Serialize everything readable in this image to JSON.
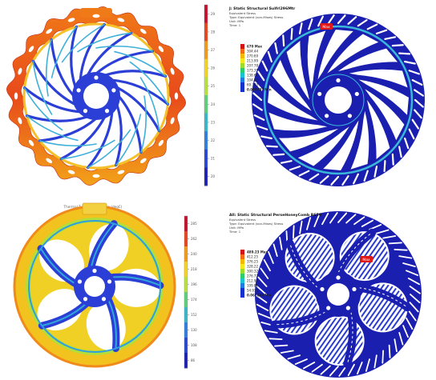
{
  "panels": [
    {
      "id": "thermal-top",
      "colorbar": {
        "ticks": [
          "29",
          "28",
          "27",
          "26",
          "25",
          "24",
          "23",
          "22",
          "21",
          "20"
        ],
        "colors": [
          "#c8102e",
          "#e8451c",
          "#f39a19",
          "#f5d520",
          "#b9e23a",
          "#5fd07a",
          "#36b8c9",
          "#2f7fe0",
          "#2546d6",
          "#1a1fb8"
        ]
      },
      "disc": {
        "vanes": 16,
        "hole_count": 5,
        "outline_color": "#f0b22a",
        "vane_color": "#2b3fd6"
      }
    },
    {
      "id": "stress-top",
      "header": {
        "title": "J: Static Structural Sulfrl296Mtr",
        "lines": [
          "Equivalent Stress",
          "Type: Equivalent (von-Mises) Stress",
          "Unit: MPa",
          "Time: 1"
        ]
      },
      "legend": {
        "max_label": "670 Max",
        "values": [
          "304.44",
          "270.69",
          "213.99",
          "207.78",
          "173.35",
          "138.67",
          "104.13",
          "69.303"
        ],
        "min_label": "0.070797 Min",
        "colors": [
          "#d41414",
          "#f26a14",
          "#f5b800",
          "#f2e81a",
          "#9bdd2a",
          "#2ecc6a",
          "#19c4d2",
          "#1f7be0",
          "#1532cf"
        ]
      },
      "max_marker": "Max",
      "disc": {
        "vanes": 16,
        "hole_count": 5
      }
    },
    {
      "id": "thermal-bottom",
      "title": "Thermal   Type: Temperature (degC)",
      "colorbar": {
        "ticks": [
          "285",
          "262",
          "240",
          "218",
          "196",
          "174",
          "152",
          "130",
          "108",
          "86"
        ],
        "colors": [
          "#c8102e",
          "#e8451c",
          "#f39a19",
          "#f5d520",
          "#b9e23a",
          "#5fd07a",
          "#36b8c9",
          "#2f7fe0",
          "#2546d6",
          "#1a1fb8"
        ]
      },
      "disc": {
        "arms": 5,
        "hole_count": 5
      }
    },
    {
      "id": "stress-bottom",
      "header": {
        "title": "All: Static Structural PerseHoneyComb RS50",
        "lines": [
          "Equivalent Stress",
          "Type: Equivalent (von-Mises) Stress",
          "Unit: MPa",
          "Time: 1"
        ]
      },
      "legend": {
        "max_label": "489.23 Max",
        "values": [
          "412.25",
          "376.25",
          "328.22",
          "300.32",
          "276.72",
          "212.96",
          "109.88",
          "54.939"
        ],
        "min_label": "0.067644 Min",
        "colors": [
          "#d41414",
          "#f26a14",
          "#f5b800",
          "#f2e81a",
          "#9bdd2a",
          "#2ecc6a",
          "#19c4d2",
          "#1f7be0",
          "#1532cf"
        ]
      },
      "max_marker": "Max",
      "disc": {
        "arms": 5,
        "hole_count": 5
      }
    }
  ]
}
